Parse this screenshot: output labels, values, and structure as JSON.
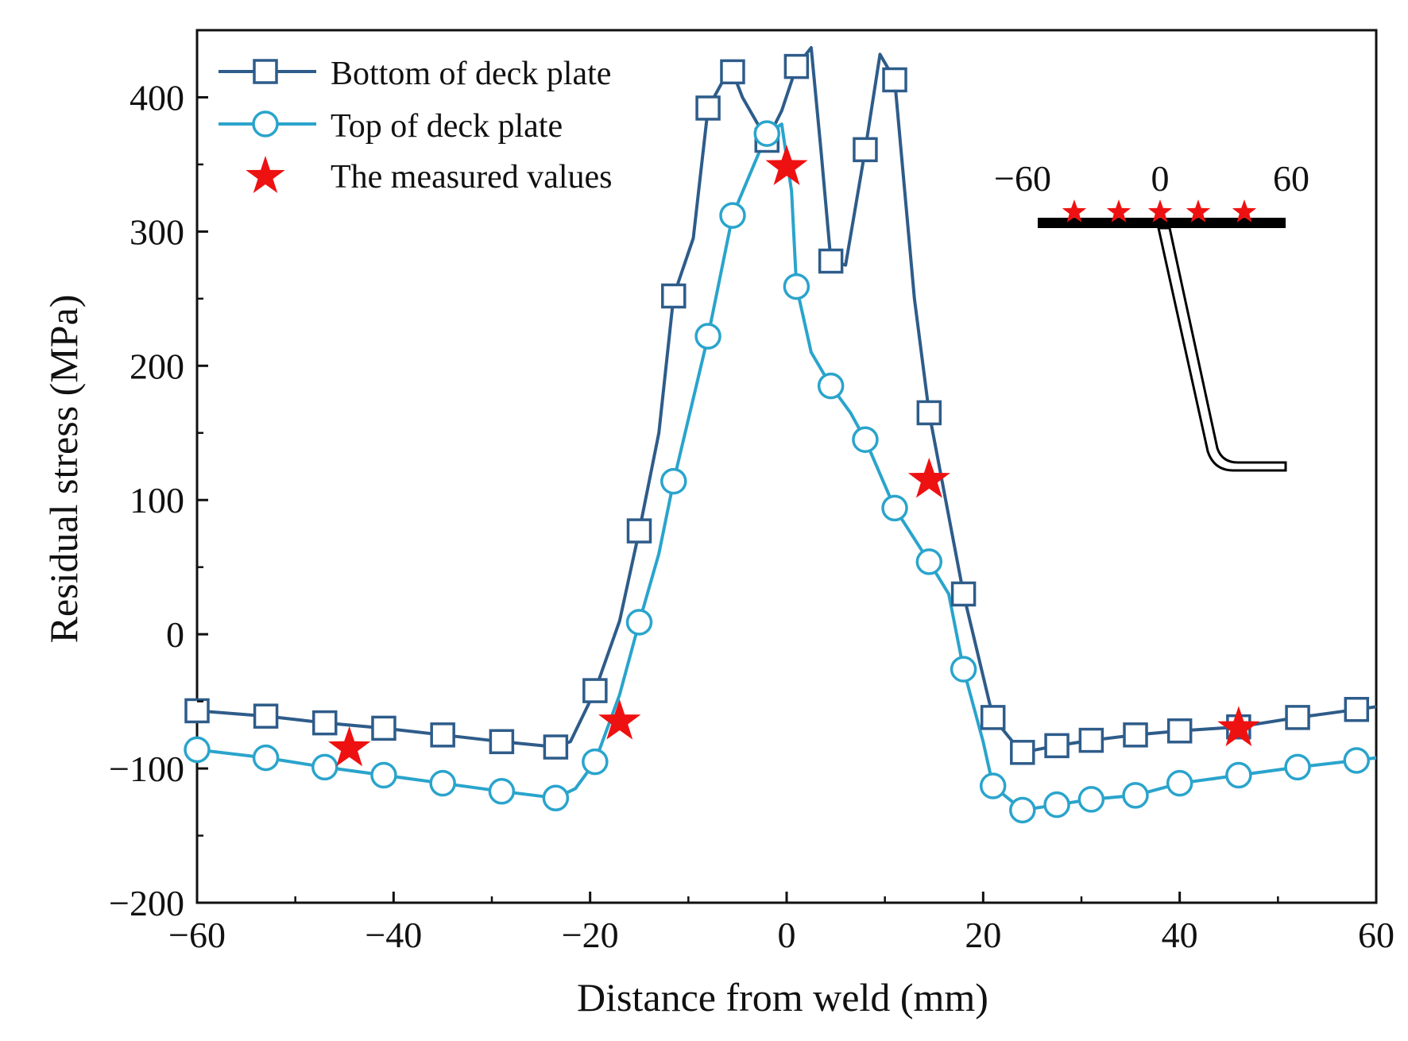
{
  "chart_data": {
    "type": "line",
    "xlabel": "Distance from weld (mm)",
    "ylabel": "Residual stress (MPa)",
    "xlim": [
      -60,
      60
    ],
    "ylim": [
      -200,
      450
    ],
    "x_ticks": [
      -60,
      -40,
      -20,
      0,
      20,
      40,
      60
    ],
    "x_tick_labels": [
      "−60",
      "−40",
      "−20",
      "0",
      "20",
      "40",
      "60"
    ],
    "y_ticks": [
      -200,
      -100,
      0,
      100,
      200,
      300,
      400
    ],
    "y_tick_labels": [
      "−200",
      "−100",
      "0",
      "100",
      "200",
      "300",
      "400"
    ],
    "legend_position": "top-left",
    "series": [
      {
        "name": "Bottom of deck plate",
        "color": "#2e5c8a",
        "marker": "square",
        "line": [
          [
            -60,
            -57
          ],
          [
            -53,
            -61
          ],
          [
            -47,
            -66
          ],
          [
            -41,
            -70
          ],
          [
            -35,
            -75
          ],
          [
            -29,
            -80
          ],
          [
            -23.5,
            -84
          ],
          [
            -22,
            -80
          ],
          [
            -19.5,
            -42
          ],
          [
            -17,
            10
          ],
          [
            -15,
            77
          ],
          [
            -13,
            150
          ],
          [
            -11.5,
            252
          ],
          [
            -9.5,
            295
          ],
          [
            -8,
            392
          ],
          [
            -6.5,
            412
          ],
          [
            -5.5,
            419
          ],
          [
            -4.5,
            400
          ],
          [
            -2,
            368
          ],
          [
            -0.5,
            390
          ],
          [
            1,
            423
          ],
          [
            2.5,
            437
          ],
          [
            3.5,
            360
          ],
          [
            4.5,
            278
          ],
          [
            6,
            275
          ],
          [
            8,
            361
          ],
          [
            9.5,
            432
          ],
          [
            11,
            413
          ],
          [
            13,
            250
          ],
          [
            14.5,
            165
          ],
          [
            18,
            30
          ],
          [
            21,
            -62
          ],
          [
            23,
            -80
          ],
          [
            24,
            -88
          ],
          [
            27.5,
            -83
          ],
          [
            31,
            -79
          ],
          [
            35.5,
            -75
          ],
          [
            40,
            -72
          ],
          [
            46,
            -69
          ],
          [
            52,
            -62
          ],
          [
            58,
            -56
          ],
          [
            60,
            -54
          ]
        ],
        "markers": [
          [
            -60,
            -57
          ],
          [
            -53,
            -61
          ],
          [
            -47,
            -66
          ],
          [
            -41,
            -70
          ],
          [
            -35,
            -75
          ],
          [
            -29,
            -80
          ],
          [
            -23.5,
            -84
          ],
          [
            -19.5,
            -42
          ],
          [
            -15,
            77
          ],
          [
            -11.5,
            252
          ],
          [
            -8,
            392
          ],
          [
            -5.5,
            419
          ],
          [
            -2,
            368
          ],
          [
            1,
            423
          ],
          [
            4.5,
            278
          ],
          [
            8,
            361
          ],
          [
            11,
            413
          ],
          [
            14.5,
            165
          ],
          [
            18,
            30
          ],
          [
            21,
            -62
          ],
          [
            24,
            -88
          ],
          [
            27.5,
            -83
          ],
          [
            31,
            -79
          ],
          [
            35.5,
            -75
          ],
          [
            40,
            -72
          ],
          [
            46,
            -69
          ],
          [
            52,
            -62
          ],
          [
            58,
            -56
          ]
        ]
      },
      {
        "name": "Top of deck plate",
        "color": "#2aa4cc",
        "marker": "circle",
        "line": [
          [
            -60,
            -86
          ],
          [
            -53,
            -92
          ],
          [
            -47,
            -99
          ],
          [
            -41,
            -105
          ],
          [
            -35,
            -111
          ],
          [
            -29,
            -117
          ],
          [
            -23.5,
            -122
          ],
          [
            -21.5,
            -115
          ],
          [
            -19.5,
            -95
          ],
          [
            -17,
            -45
          ],
          [
            -15,
            9
          ],
          [
            -13,
            60
          ],
          [
            -11.5,
            114
          ],
          [
            -8,
            222
          ],
          [
            -5.5,
            312
          ],
          [
            -2,
            373
          ],
          [
            -0.5,
            380
          ],
          [
            0.5,
            330
          ],
          [
            1,
            259
          ],
          [
            2.5,
            210
          ],
          [
            4.5,
            185
          ],
          [
            6.5,
            165
          ],
          [
            8,
            145
          ],
          [
            11,
            94
          ],
          [
            14.5,
            54
          ],
          [
            16.5,
            30
          ],
          [
            18,
            -26
          ],
          [
            20,
            -80
          ],
          [
            21,
            -113
          ],
          [
            24,
            -131
          ],
          [
            27.5,
            -127
          ],
          [
            31,
            -123
          ],
          [
            35.5,
            -120
          ],
          [
            40,
            -111
          ],
          [
            46,
            -105
          ],
          [
            52,
            -99
          ],
          [
            58,
            -94
          ],
          [
            60,
            -92
          ]
        ],
        "markers": [
          [
            -60,
            -86
          ],
          [
            -53,
            -92
          ],
          [
            -47,
            -99
          ],
          [
            -41,
            -105
          ],
          [
            -35,
            -111
          ],
          [
            -29,
            -117
          ],
          [
            -23.5,
            -122
          ],
          [
            -19.5,
            -95
          ],
          [
            -15,
            9
          ],
          [
            -11.5,
            114
          ],
          [
            -8,
            222
          ],
          [
            -5.5,
            312
          ],
          [
            -2,
            373
          ],
          [
            1,
            259
          ],
          [
            4.5,
            185
          ],
          [
            8,
            145
          ],
          [
            11,
            94
          ],
          [
            14.5,
            54
          ],
          [
            18,
            -26
          ],
          [
            21,
            -113
          ],
          [
            24,
            -131
          ],
          [
            27.5,
            -127
          ],
          [
            31,
            -123
          ],
          [
            35.5,
            -120
          ],
          [
            40,
            -111
          ],
          [
            46,
            -105
          ],
          [
            52,
            -99
          ],
          [
            58,
            -94
          ]
        ]
      },
      {
        "name": "The measured values",
        "color": "#ee1111",
        "marker": "star",
        "points": [
          [
            -44.5,
            -85
          ],
          [
            -17,
            -65
          ],
          [
            0,
            348
          ],
          [
            14.5,
            115
          ],
          [
            46,
            -70
          ]
        ]
      }
    ],
    "inset": {
      "left_label": "−60",
      "center_label": "0",
      "right_label": "60",
      "star_count": 5
    }
  }
}
